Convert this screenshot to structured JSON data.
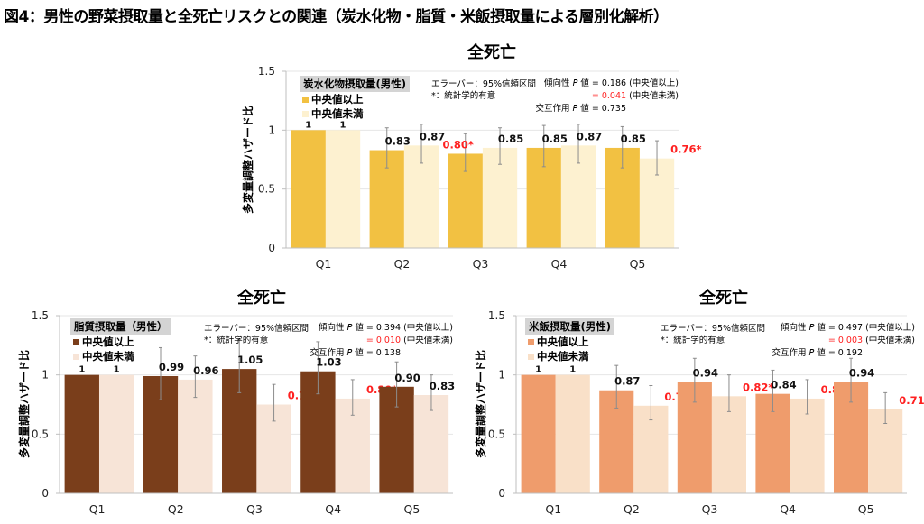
{
  "figure_title": "図4：男性の野菜摂取量と全死亡リスクとの関連（炭水化物・脂質・米飯摂取量による層別化解析）",
  "common": {
    "error_note": "エラーバー：95%信頼区間",
    "sig_note": "*：統計学的有意",
    "trend_label": "傾向性 𝘗 値",
    "interaction_label": "交互作用 𝘗 値",
    "above_label": "(中央値以上)",
    "below_label": "(中央値未満)"
  },
  "colors": {
    "significant": "#ff2020",
    "grid": "#e6e6e6",
    "errorbar": "#8c8c8c"
  },
  "chart_data": [
    {
      "id": "carb",
      "type": "bar",
      "title": "全死亡",
      "ylabel": "多変量調整ハザード比",
      "xlabel": "",
      "categories": [
        "Q1",
        "Q2",
        "Q3",
        "Q4",
        "Q5"
      ],
      "ylim": [
        0,
        1.5
      ],
      "yticks": [
        "0",
        "0.5",
        "1",
        "1.5"
      ],
      "grid": true,
      "legend_title": "炭水化物摂取量(男性)",
      "legend_position": "top-left",
      "trend_p_above": "= 0.186",
      "trend_p_below": "= 0.041",
      "trend_p_below_significant": true,
      "interaction_p": "= 0.735",
      "series": [
        {
          "name": "中央値以上",
          "color": "#f2c142",
          "values": [
            1,
            0.83,
            0.8,
            0.85,
            0.85
          ],
          "labels": [
            "1",
            "0.83",
            "0.80*",
            "0.85",
            "0.85"
          ],
          "significant": [
            false,
            false,
            true,
            false,
            false
          ],
          "ci_low": [
            null,
            0.68,
            0.65,
            0.69,
            0.68
          ],
          "ci_high": [
            null,
            1.02,
            0.97,
            1.04,
            1.03
          ]
        },
        {
          "name": "中央値未満",
          "color": "#fdf1d0",
          "values": [
            1,
            0.87,
            0.85,
            0.87,
            0.76
          ],
          "labels": [
            "1",
            "0.87",
            "0.85",
            "0.87",
            "0.76*"
          ],
          "significant": [
            false,
            false,
            false,
            false,
            true
          ],
          "ci_low": [
            null,
            0.72,
            0.71,
            0.72,
            0.62
          ],
          "ci_high": [
            null,
            1.05,
            1.02,
            1.05,
            0.91
          ]
        }
      ]
    },
    {
      "id": "fat",
      "type": "bar",
      "title": "全死亡",
      "ylabel": "多変量調整ハザード比",
      "xlabel": "",
      "categories": [
        "Q1",
        "Q2",
        "Q3",
        "Q4",
        "Q5"
      ],
      "ylim": [
        0,
        1.5
      ],
      "yticks": [
        "0",
        "0.5",
        "1",
        "1.5"
      ],
      "grid": true,
      "legend_title": "脂質摂取量（男性）",
      "legend_position": "top-left",
      "trend_p_above": "= 0.394",
      "trend_p_below": "= 0.010",
      "trend_p_below_significant": true,
      "interaction_p": "= 0.138",
      "series": [
        {
          "name": "中央値以上",
          "color": "#7a3e1b",
          "values": [
            1,
            0.99,
            1.05,
            1.03,
            0.9
          ],
          "labels": [
            "1",
            "0.99",
            "1.05",
            "1.03",
            "0.90"
          ],
          "significant": [
            false,
            false,
            false,
            false,
            false
          ],
          "ci_low": [
            null,
            0.79,
            0.85,
            0.84,
            0.73
          ],
          "ci_high": [
            null,
            1.23,
            1.3,
            1.28,
            1.11
          ]
        },
        {
          "name": "中央値未満",
          "color": "#f7e4d7",
          "values": [
            1,
            0.96,
            0.75,
            0.8,
            0.83
          ],
          "labels": [
            "1",
            "0.96",
            "0.75*",
            "0.80*",
            "0.83"
          ],
          "significant": [
            false,
            false,
            true,
            true,
            false
          ],
          "ci_low": [
            null,
            0.81,
            0.61,
            0.66,
            0.7
          ],
          "ci_high": [
            null,
            1.16,
            0.92,
            0.96,
            1.0
          ]
        }
      ]
    },
    {
      "id": "rice",
      "type": "bar",
      "title": "全死亡",
      "ylabel": "多変量調整ハザード比",
      "xlabel": "",
      "categories": [
        "Q1",
        "Q2",
        "Q3",
        "Q4",
        "Q5"
      ],
      "ylim": [
        0,
        1.5
      ],
      "yticks": [
        "0",
        "0.5",
        "1",
        "1.5"
      ],
      "grid": true,
      "legend_title": "米飯摂取量(男性)",
      "legend_position": "top-left",
      "trend_p_above": "= 0.497",
      "trend_p_below": "= 0.003",
      "trend_p_below_significant": true,
      "interaction_p": "= 0.192",
      "series": [
        {
          "name": "中央値以上",
          "color": "#ef9c6c",
          "values": [
            1,
            0.87,
            0.94,
            0.84,
            0.94
          ],
          "labels": [
            "1",
            "0.87",
            "0.94",
            "0.84",
            "0.94"
          ],
          "significant": [
            false,
            false,
            false,
            false,
            false
          ],
          "ci_low": [
            null,
            0.72,
            0.77,
            0.69,
            0.77
          ],
          "ci_high": [
            null,
            1.08,
            1.14,
            1.04,
            1.14
          ]
        },
        {
          "name": "中央値未満",
          "color": "#f9e0c8",
          "values": [
            1,
            0.74,
            0.82,
            0.8,
            0.71
          ],
          "labels": [
            "1",
            "0.74*",
            "0.82*",
            "0.80*",
            "0.71*"
          ],
          "significant": [
            false,
            true,
            true,
            true,
            true
          ],
          "ci_low": [
            null,
            0.62,
            0.69,
            0.67,
            0.59
          ],
          "ci_high": [
            null,
            0.91,
            1.0,
            0.96,
            0.85
          ]
        }
      ]
    }
  ]
}
